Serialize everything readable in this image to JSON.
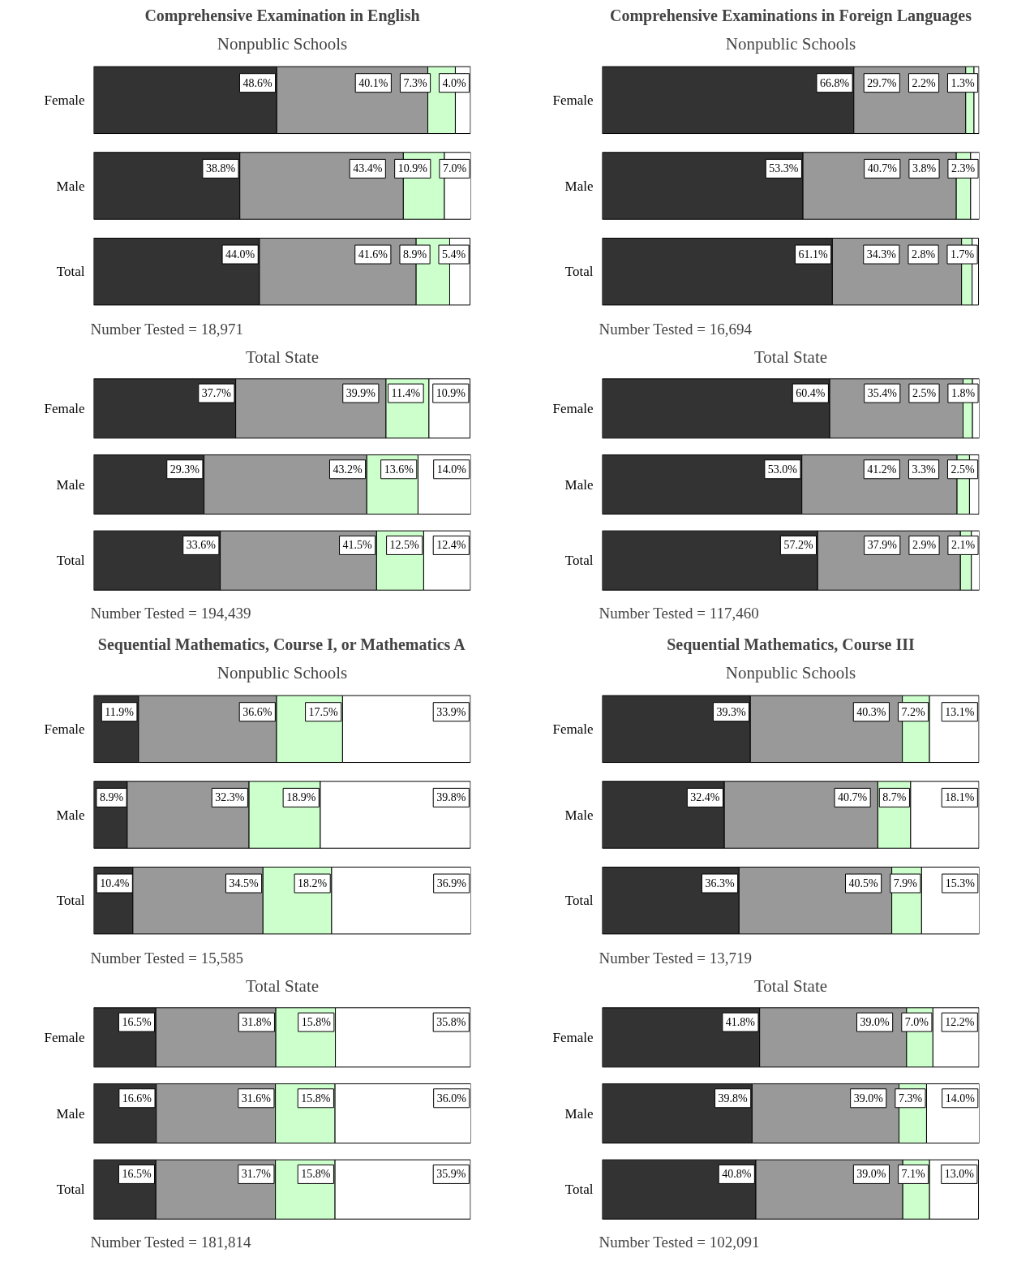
{
  "chart_data": [
    {
      "type": "bar",
      "orientation": "horizontal",
      "stacked": true,
      "tick_labels": "y",
      "title": "Comprehensive Examination in English",
      "subtitle": "Nonpublic Schools",
      "categories": [
        "Female",
        "Male",
        "Total"
      ],
      "annotations": [
        "Number Tested = 18,971"
      ],
      "series": [
        {
          "color": "#333333",
          "values": [
            48.6,
            38.8,
            44.0
          ],
          "value_labels": [
            "48.6%",
            "38.8%",
            "44.0%"
          ]
        },
        {
          "color": "#999999",
          "values": [
            40.1,
            43.4,
            41.6
          ],
          "value_labels": [
            "40.1%",
            "43.4%",
            "41.6%"
          ]
        },
        {
          "color": "#ccffcc",
          "values": [
            7.3,
            10.9,
            8.9
          ],
          "value_labels": [
            "7.3%",
            "10.9%",
            "8.9%"
          ]
        },
        {
          "color": "#ffffff",
          "values": [
            4.0,
            7.0,
            5.4
          ],
          "value_labels": [
            "4.0%",
            "7.0%",
            "5.4%"
          ]
        }
      ]
    },
    {
      "type": "bar",
      "orientation": "horizontal",
      "stacked": true,
      "tick_labels": "y",
      "title": "Total State",
      "categories": [
        "Female",
        "Male",
        "Total"
      ],
      "annotations": [
        "Number Tested = 194,439"
      ],
      "series": [
        {
          "color": "#333333",
          "values": [
            37.7,
            29.3,
            33.6
          ],
          "value_labels": [
            "37.7%",
            "29.3%",
            "33.6%"
          ]
        },
        {
          "color": "#999999",
          "values": [
            39.9,
            43.2,
            41.5
          ],
          "value_labels": [
            "39.9%",
            "43.2%",
            "41.5%"
          ]
        },
        {
          "color": "#ccffcc",
          "values": [
            11.4,
            13.6,
            12.5
          ],
          "value_labels": [
            "11.4%",
            "13.6%",
            "12.5%"
          ]
        },
        {
          "color": "#ffffff",
          "values": [
            10.9,
            14.0,
            12.4
          ],
          "value_labels": [
            "10.9%",
            "14.0%",
            "12.4%"
          ]
        }
      ]
    },
    {
      "type": "bar",
      "orientation": "horizontal",
      "stacked": true,
      "tick_labels": "y",
      "title": "Comprehensive Examinations in Foreign Languages",
      "subtitle": "Nonpublic Schools",
      "categories": [
        "Female",
        "Male",
        "Total"
      ],
      "annotations": [
        "Number Tested = 16,694"
      ],
      "series": [
        {
          "color": "#333333",
          "values": [
            66.8,
            53.3,
            61.1
          ],
          "value_labels": [
            "66.8%",
            "53.3%",
            "61.1%"
          ]
        },
        {
          "color": "#999999",
          "values": [
            29.7,
            40.7,
            34.3
          ],
          "value_labels": [
            "29.7%",
            "40.7%",
            "34.3%"
          ]
        },
        {
          "color": "#ccffcc",
          "values": [
            2.2,
            3.8,
            2.8
          ],
          "value_labels": [
            "2.2%",
            "3.8%",
            "2.8%"
          ]
        },
        {
          "color": "#ffffff",
          "values": [
            1.3,
            2.3,
            1.7
          ],
          "value_labels": [
            "1.3%",
            "2.3%",
            "1.7%"
          ]
        }
      ]
    },
    {
      "type": "bar",
      "orientation": "horizontal",
      "stacked": true,
      "tick_labels": "y",
      "title": "Total State",
      "categories": [
        "Female",
        "Male",
        "Total"
      ],
      "annotations": [
        "Number Tested = 117,460"
      ],
      "series": [
        {
          "color": "#333333",
          "values": [
            60.4,
            53.0,
            57.2
          ],
          "value_labels": [
            "60.4%",
            "53.0%",
            "57.2%"
          ]
        },
        {
          "color": "#999999",
          "values": [
            35.4,
            41.2,
            37.9
          ],
          "value_labels": [
            "35.4%",
            "41.2%",
            "37.9%"
          ]
        },
        {
          "color": "#ccffcc",
          "values": [
            2.5,
            3.3,
            2.9
          ],
          "value_labels": [
            "2.5%",
            "3.3%",
            "2.9%"
          ]
        },
        {
          "color": "#ffffff",
          "values": [
            1.8,
            2.5,
            2.1
          ],
          "value_labels": [
            "1.8%",
            "2.5%",
            "2.1%"
          ]
        }
      ]
    },
    {
      "type": "bar",
      "orientation": "horizontal",
      "stacked": true,
      "tick_labels": "y",
      "title": "Sequential Mathematics, Course I, or Mathematics A",
      "subtitle": "Nonpublic Schools",
      "categories": [
        "Female",
        "Male",
        "Total"
      ],
      "annotations": [
        "Number Tested = 15,585"
      ],
      "series": [
        {
          "color": "#333333",
          "values": [
            11.9,
            8.9,
            10.4
          ],
          "value_labels": [
            "11.9%",
            "8.9%",
            "10.4%"
          ]
        },
        {
          "color": "#999999",
          "values": [
            36.6,
            32.3,
            34.5
          ],
          "value_labels": [
            "36.6%",
            "32.3%",
            "34.5%"
          ]
        },
        {
          "color": "#ccffcc",
          "values": [
            17.5,
            18.9,
            18.2
          ],
          "value_labels": [
            "17.5%",
            "18.9%",
            "18.2%"
          ]
        },
        {
          "color": "#ffffff",
          "values": [
            33.9,
            39.8,
            36.9
          ],
          "value_labels": [
            "33.9%",
            "39.8%",
            "36.9%"
          ]
        }
      ]
    },
    {
      "type": "bar",
      "orientation": "horizontal",
      "stacked": true,
      "tick_labels": "y",
      "title": "Total State",
      "categories": [
        "Female",
        "Male",
        "Total"
      ],
      "annotations": [
        "Number Tested = 181,814"
      ],
      "series": [
        {
          "color": "#333333",
          "values": [
            16.5,
            16.6,
            16.5
          ],
          "value_labels": [
            "16.5%",
            "16.6%",
            "16.5%"
          ]
        },
        {
          "color": "#999999",
          "values": [
            31.8,
            31.6,
            31.7
          ],
          "value_labels": [
            "31.8%",
            "31.6%",
            "31.7%"
          ]
        },
        {
          "color": "#ccffcc",
          "values": [
            15.8,
            15.8,
            15.8
          ],
          "value_labels": [
            "15.8%",
            "15.8%",
            "15.8%"
          ]
        },
        {
          "color": "#ffffff",
          "values": [
            35.8,
            36.0,
            35.9
          ],
          "value_labels": [
            "35.8%",
            "36.0%",
            "35.9%"
          ]
        }
      ]
    },
    {
      "type": "bar",
      "orientation": "horizontal",
      "stacked": true,
      "tick_labels": "y",
      "title": "Sequential Mathematics, Course III",
      "subtitle": "Nonpublic Schools",
      "categories": [
        "Female",
        "Male",
        "Total"
      ],
      "annotations": [
        "Number Tested = 13,719"
      ],
      "series": [
        {
          "color": "#333333",
          "values": [
            39.3,
            32.4,
            36.3
          ],
          "value_labels": [
            "39.3%",
            "32.4%",
            "36.3%"
          ]
        },
        {
          "color": "#999999",
          "values": [
            40.3,
            40.7,
            40.5
          ],
          "value_labels": [
            "40.3%",
            "40.7%",
            "40.5%"
          ]
        },
        {
          "color": "#ccffcc",
          "values": [
            7.2,
            8.7,
            7.9
          ],
          "value_labels": [
            "7.2%",
            "8.7%",
            "7.9%"
          ]
        },
        {
          "color": "#ffffff",
          "values": [
            13.1,
            18.1,
            15.3
          ],
          "value_labels": [
            "13.1%",
            "18.1%",
            "15.3%"
          ]
        }
      ]
    },
    {
      "type": "bar",
      "orientation": "horizontal",
      "stacked": true,
      "tick_labels": "y",
      "title": "Total State",
      "categories": [
        "Female",
        "Male",
        "Total"
      ],
      "annotations": [
        "Number Tested = 102,091"
      ],
      "series": [
        {
          "color": "#333333",
          "values": [
            41.8,
            39.8,
            40.8
          ],
          "value_labels": [
            "41.8%",
            "39.8%",
            "40.8%"
          ]
        },
        {
          "color": "#999999",
          "values": [
            39.0,
            39.0,
            39.0
          ],
          "value_labels": [
            "39.0%",
            "39.0%",
            "39.0%"
          ]
        },
        {
          "color": "#ccffcc",
          "values": [
            7.0,
            7.3,
            7.1
          ],
          "value_labels": [
            "7.0%",
            "7.3%",
            "7.1%"
          ]
        },
        {
          "color": "#ffffff",
          "values": [
            12.2,
            14.0,
            13.0
          ],
          "value_labels": [
            "12.2%",
            "14.0%",
            "13.0%"
          ]
        }
      ]
    }
  ]
}
